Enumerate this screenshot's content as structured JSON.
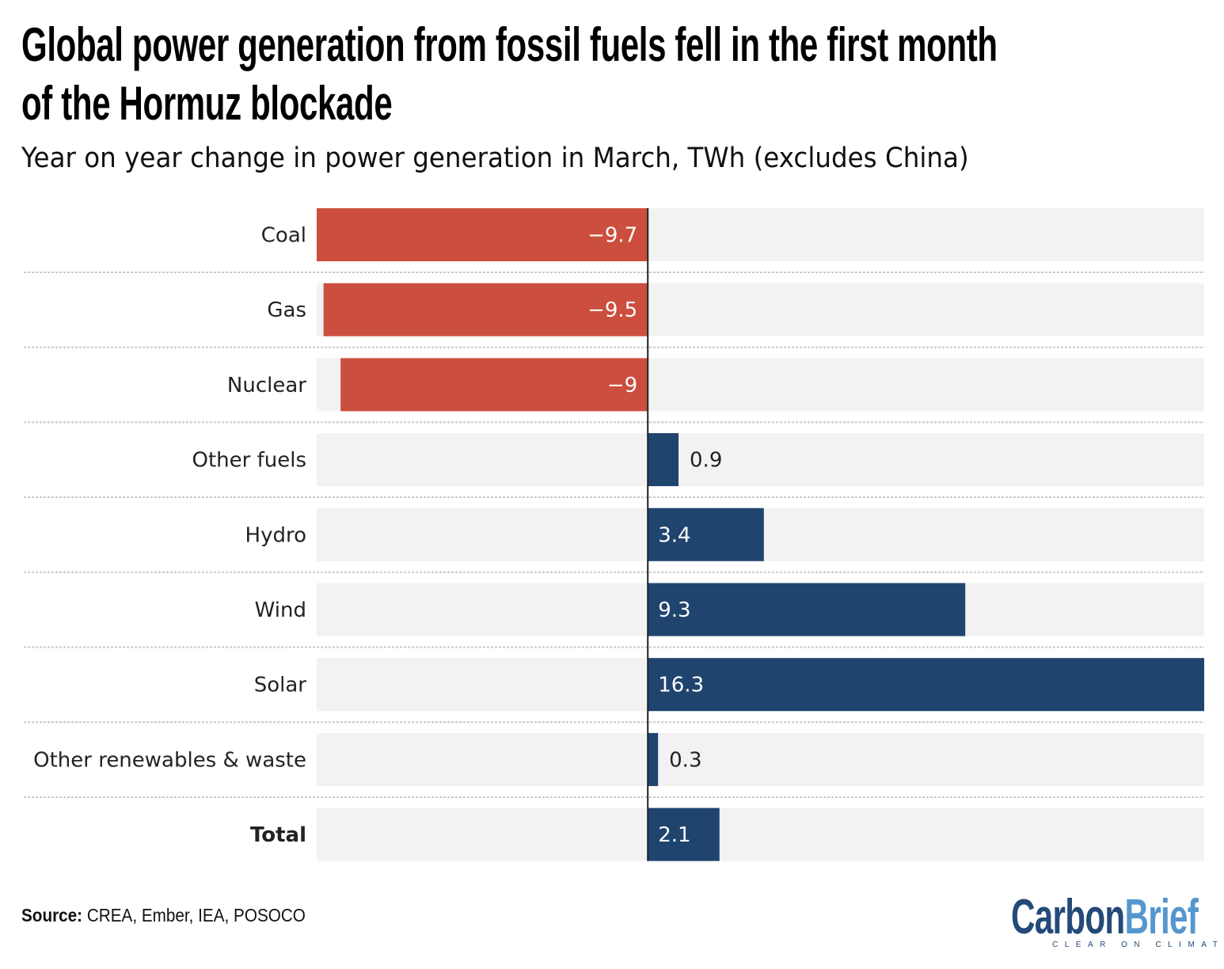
{
  "title_lines": [
    "Global power generation from fossil fuels fell in the first month",
    "of the Hormuz blockade"
  ],
  "subtitle": "Year on year change in power generation in March, TWh (excludes China)",
  "source_label": "Source:",
  "source_text": " CREA, Ember, IEA, POSOCO",
  "logo": {
    "part1": "Carbon",
    "part2": "Brief",
    "tagline": "CLEAR ON CLIMATE",
    "color1": "#234a78",
    "color2": "#5596cf"
  },
  "chart_data": {
    "type": "bar",
    "orientation": "horizontal",
    "categories": [
      "Coal",
      "Gas",
      "Nuclear",
      "Other fuels",
      "Hydro",
      "Wind",
      "Solar",
      "Other renewables & waste",
      "Total"
    ],
    "values": [
      -9.7,
      -9.5,
      -9,
      0.9,
      3.4,
      9.3,
      16.3,
      0.3,
      2.1
    ],
    "data_labels": [
      "−9.7",
      "−9.5",
      "−9",
      "0.9",
      "3.4",
      "9.3",
      "16.3",
      "0.3",
      "2.1"
    ],
    "bold_categories": [
      "Total"
    ],
    "xlim": [
      -9.7,
      16.3
    ],
    "colors": {
      "negative": "#cc4e3e",
      "positive": "#1f446e",
      "background": "#f2f2f2"
    },
    "grid": false,
    "title": "",
    "xlabel": "",
    "ylabel": ""
  }
}
